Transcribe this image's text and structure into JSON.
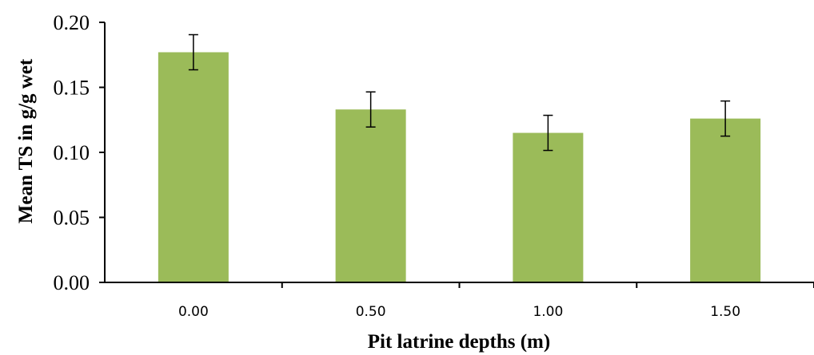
{
  "chart_data": {
    "type": "bar",
    "categories": [
      "0.00",
      "0.50",
      "1.00",
      "1.50"
    ],
    "values": [
      0.177,
      0.133,
      0.115,
      0.126
    ],
    "error": [
      0.0135,
      0.0135,
      0.0135,
      0.0135
    ],
    "title": "",
    "xlabel": "Pit latrine depths (m)",
    "ylabel": "Mean TS in g/g wet",
    "ylim": [
      0,
      0.2
    ],
    "yticks": [
      "0.00",
      "0.05",
      "0.10",
      "0.15",
      "0.20"
    ],
    "grid": false,
    "legend": "none",
    "bar_color": "#9BBB59"
  }
}
